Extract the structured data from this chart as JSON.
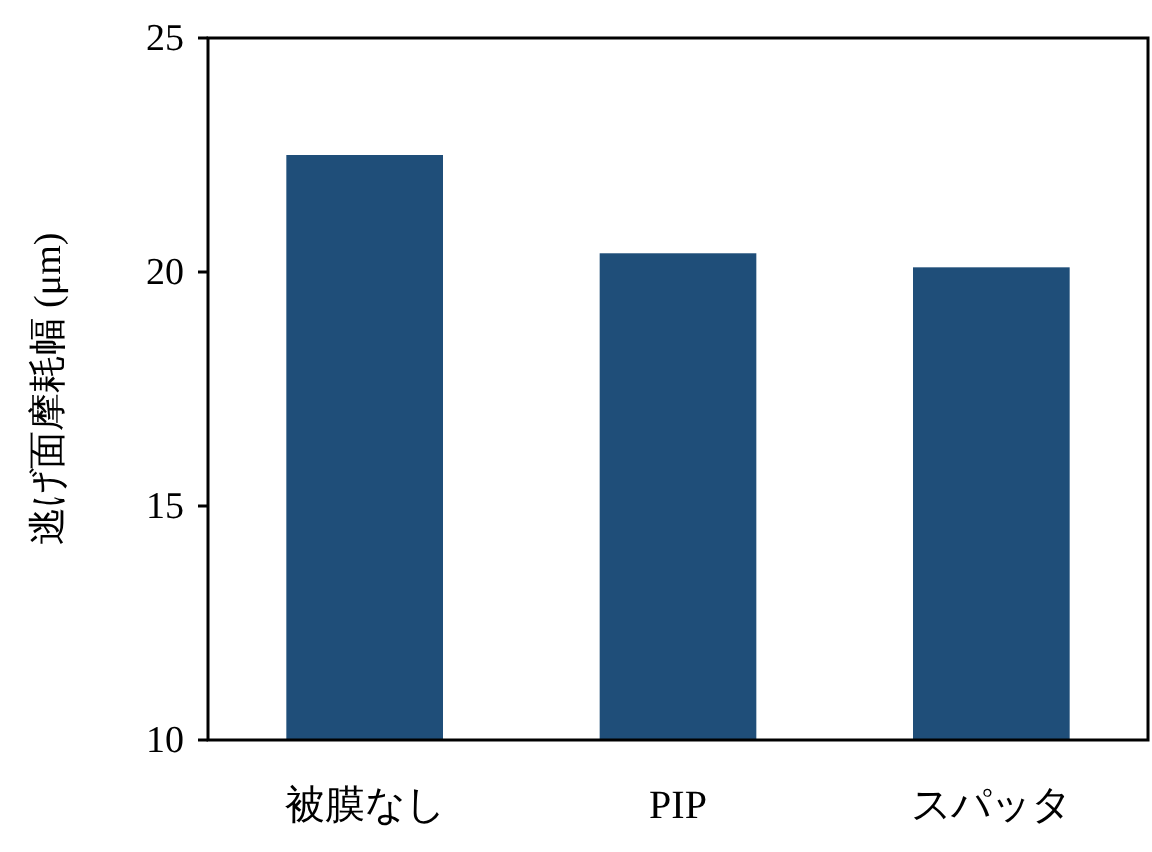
{
  "chart_data": {
    "type": "bar",
    "ylabel": "逃げ面摩耗幅 (μm)",
    "categories": [
      "被膜なし",
      "PIP",
      "スパッタ"
    ],
    "values": [
      22.5,
      20.4,
      20.1
    ],
    "color": "#1f4e79",
    "ylim": [
      10,
      25
    ],
    "yticks": [
      10,
      15,
      20,
      25
    ],
    "grid": false
  }
}
